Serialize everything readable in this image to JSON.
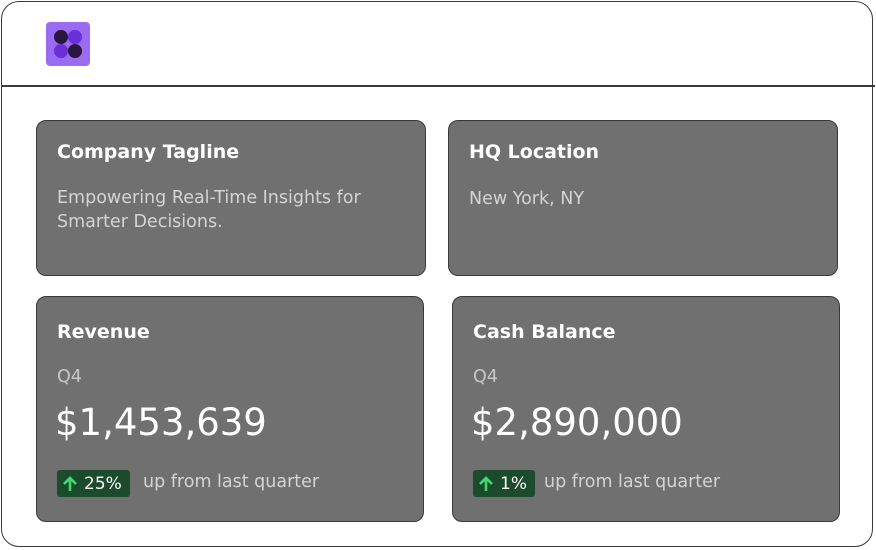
{
  "header": {
    "logo": "logo"
  },
  "cards": [
    {
      "title": "Company Tagline",
      "text": "Empowering Real-Time Insights for Smarter Decisions."
    },
    {
      "title": "HQ Location",
      "text": "New York, NY"
    }
  ],
  "metrics": [
    {
      "title": "Revenue",
      "period": "Q4",
      "value": "$1,453,639",
      "change": "25%",
      "note": "up from last quarter"
    },
    {
      "title": "Cash Balance",
      "period": "Q4",
      "value": "$2,890,000",
      "change": "1%",
      "note": "up from last quarter"
    }
  ]
}
